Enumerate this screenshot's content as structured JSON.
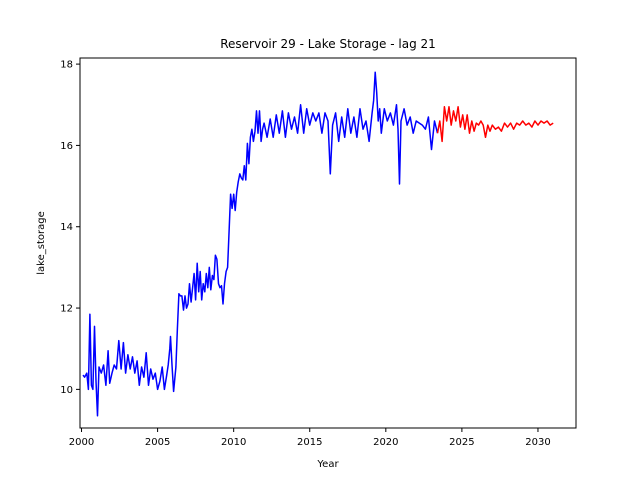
{
  "chart_data": {
    "type": "line",
    "title": "Reservoir 29 - Lake Storage - lag 21",
    "xlabel": "Year",
    "ylabel": "lake_storage",
    "xlim": [
      1999.9,
      2032.5
    ],
    "ylim": [
      9.05,
      18.15
    ],
    "xticks": [
      2000,
      2005,
      2010,
      2015,
      2020,
      2025,
      2030
    ],
    "yticks": [
      10,
      12,
      14,
      16,
      18
    ],
    "grid": false,
    "legend": "none",
    "series": [
      {
        "color": "#0000ff",
        "points": [
          [
            2000.1,
            10.35
          ],
          [
            2000.2,
            10.3
          ],
          [
            2000.35,
            10.4
          ],
          [
            2000.45,
            10.0
          ],
          [
            2000.55,
            11.85
          ],
          [
            2000.65,
            10.1
          ],
          [
            2000.75,
            10.0
          ],
          [
            2000.85,
            11.55
          ],
          [
            2000.95,
            10.2
          ],
          [
            2001.05,
            9.35
          ],
          [
            2001.15,
            10.55
          ],
          [
            2001.3,
            10.4
          ],
          [
            2001.45,
            10.6
          ],
          [
            2001.6,
            10.1
          ],
          [
            2001.75,
            10.95
          ],
          [
            2001.85,
            10.15
          ],
          [
            2002.0,
            10.4
          ],
          [
            2002.15,
            10.6
          ],
          [
            2002.3,
            10.5
          ],
          [
            2002.45,
            11.2
          ],
          [
            2002.6,
            10.5
          ],
          [
            2002.75,
            11.15
          ],
          [
            2002.9,
            10.4
          ],
          [
            2003.05,
            10.85
          ],
          [
            2003.2,
            10.5
          ],
          [
            2003.35,
            10.8
          ],
          [
            2003.5,
            10.4
          ],
          [
            2003.65,
            10.7
          ],
          [
            2003.8,
            10.1
          ],
          [
            2003.95,
            10.55
          ],
          [
            2004.1,
            10.3
          ],
          [
            2004.25,
            10.9
          ],
          [
            2004.4,
            10.1
          ],
          [
            2004.55,
            10.5
          ],
          [
            2004.7,
            10.25
          ],
          [
            2004.85,
            10.4
          ],
          [
            2005.0,
            10.0
          ],
          [
            2005.15,
            10.2
          ],
          [
            2005.3,
            10.55
          ],
          [
            2005.45,
            10.0
          ],
          [
            2005.6,
            10.35
          ],
          [
            2005.7,
            10.6
          ],
          [
            2005.8,
            11.0
          ],
          [
            2005.85,
            11.3
          ],
          [
            2005.95,
            10.6
          ],
          [
            2006.05,
            9.95
          ],
          [
            2006.2,
            10.55
          ],
          [
            2006.3,
            11.5
          ],
          [
            2006.4,
            12.35
          ],
          [
            2006.5,
            12.3
          ],
          [
            2006.6,
            12.3
          ],
          [
            2006.7,
            11.95
          ],
          [
            2006.8,
            12.3
          ],
          [
            2006.9,
            12.0
          ],
          [
            2007.0,
            12.1
          ],
          [
            2007.1,
            12.6
          ],
          [
            2007.2,
            12.15
          ],
          [
            2007.3,
            12.5
          ],
          [
            2007.4,
            12.85
          ],
          [
            2007.5,
            12.2
          ],
          [
            2007.6,
            13.1
          ],
          [
            2007.7,
            12.4
          ],
          [
            2007.8,
            12.9
          ],
          [
            2007.9,
            12.2
          ],
          [
            2008.0,
            12.6
          ],
          [
            2008.1,
            12.4
          ],
          [
            2008.2,
            12.85
          ],
          [
            2008.3,
            12.5
          ],
          [
            2008.4,
            13.0
          ],
          [
            2008.5,
            12.45
          ],
          [
            2008.6,
            12.8
          ],
          [
            2008.7,
            12.7
          ],
          [
            2008.8,
            13.3
          ],
          [
            2008.9,
            13.2
          ],
          [
            2009.0,
            12.6
          ],
          [
            2009.1,
            12.5
          ],
          [
            2009.2,
            12.55
          ],
          [
            2009.3,
            12.1
          ],
          [
            2009.4,
            12.6
          ],
          [
            2009.5,
            12.9
          ],
          [
            2009.6,
            13.0
          ],
          [
            2009.7,
            13.9
          ],
          [
            2009.8,
            14.8
          ],
          [
            2009.9,
            14.45
          ],
          [
            2010.0,
            14.8
          ],
          [
            2010.1,
            14.4
          ],
          [
            2010.2,
            14.85
          ],
          [
            2010.3,
            15.1
          ],
          [
            2010.4,
            15.3
          ],
          [
            2010.5,
            15.2
          ],
          [
            2010.6,
            15.15
          ],
          [
            2010.7,
            15.5
          ],
          [
            2010.8,
            15.15
          ],
          [
            2010.9,
            16.05
          ],
          [
            2011.0,
            15.55
          ],
          [
            2011.1,
            16.2
          ],
          [
            2011.2,
            16.4
          ],
          [
            2011.3,
            16.1
          ],
          [
            2011.4,
            16.35
          ],
          [
            2011.5,
            16.85
          ],
          [
            2011.6,
            16.3
          ],
          [
            2011.7,
            16.85
          ],
          [
            2011.8,
            16.1
          ],
          [
            2011.9,
            16.4
          ],
          [
            2012.0,
            16.55
          ],
          [
            2012.2,
            16.2
          ],
          [
            2012.4,
            16.65
          ],
          [
            2012.6,
            16.2
          ],
          [
            2012.8,
            16.75
          ],
          [
            2013.0,
            16.3
          ],
          [
            2013.2,
            16.85
          ],
          [
            2013.4,
            16.2
          ],
          [
            2013.6,
            16.8
          ],
          [
            2013.8,
            16.4
          ],
          [
            2014.0,
            16.7
          ],
          [
            2014.2,
            16.3
          ],
          [
            2014.4,
            17.0
          ],
          [
            2014.6,
            16.3
          ],
          [
            2014.8,
            16.9
          ],
          [
            2015.0,
            16.5
          ],
          [
            2015.2,
            16.8
          ],
          [
            2015.4,
            16.6
          ],
          [
            2015.6,
            16.8
          ],
          [
            2015.8,
            16.3
          ],
          [
            2016.0,
            16.8
          ],
          [
            2016.2,
            16.6
          ],
          [
            2016.35,
            15.3
          ],
          [
            2016.5,
            16.5
          ],
          [
            2016.7,
            16.8
          ],
          [
            2016.9,
            16.1
          ],
          [
            2017.1,
            16.7
          ],
          [
            2017.3,
            16.2
          ],
          [
            2017.5,
            16.9
          ],
          [
            2017.7,
            16.3
          ],
          [
            2017.9,
            16.7
          ],
          [
            2018.1,
            16.2
          ],
          [
            2018.3,
            16.9
          ],
          [
            2018.5,
            16.4
          ],
          [
            2018.7,
            16.6
          ],
          [
            2018.9,
            16.1
          ],
          [
            2019.1,
            16.8
          ],
          [
            2019.2,
            17.1
          ],
          [
            2019.3,
            17.8
          ],
          [
            2019.4,
            17.3
          ],
          [
            2019.5,
            16.6
          ],
          [
            2019.6,
            16.9
          ],
          [
            2019.7,
            16.3
          ],
          [
            2019.9,
            16.9
          ],
          [
            2020.1,
            16.6
          ],
          [
            2020.3,
            16.8
          ],
          [
            2020.5,
            16.5
          ],
          [
            2020.7,
            17.0
          ],
          [
            2020.8,
            16.4
          ],
          [
            2020.9,
            15.05
          ],
          [
            2021.0,
            16.6
          ],
          [
            2021.2,
            16.9
          ],
          [
            2021.4,
            16.5
          ],
          [
            2021.6,
            16.7
          ],
          [
            2021.8,
            16.3
          ],
          [
            2022.0,
            16.6
          ],
          [
            2022.2,
            16.55
          ],
          [
            2022.4,
            16.5
          ],
          [
            2022.6,
            16.4
          ],
          [
            2022.8,
            16.7
          ],
          [
            2023.0,
            15.9
          ],
          [
            2023.2,
            16.6
          ],
          [
            2023.4,
            16.3
          ]
        ]
      },
      {
        "color": "#ff0000",
        "points": [
          [
            2023.4,
            16.3
          ],
          [
            2023.55,
            16.6
          ],
          [
            2023.7,
            16.1
          ],
          [
            2023.85,
            16.95
          ],
          [
            2024.0,
            16.6
          ],
          [
            2024.15,
            16.95
          ],
          [
            2024.3,
            16.5
          ],
          [
            2024.45,
            16.85
          ],
          [
            2024.6,
            16.6
          ],
          [
            2024.75,
            16.95
          ],
          [
            2024.9,
            16.45
          ],
          [
            2025.05,
            16.75
          ],
          [
            2025.2,
            16.4
          ],
          [
            2025.35,
            16.75
          ],
          [
            2025.5,
            16.3
          ],
          [
            2025.65,
            16.6
          ],
          [
            2025.8,
            16.35
          ],
          [
            2025.95,
            16.55
          ],
          [
            2026.1,
            16.5
          ],
          [
            2026.25,
            16.6
          ],
          [
            2026.4,
            16.5
          ],
          [
            2026.55,
            16.2
          ],
          [
            2026.7,
            16.5
          ],
          [
            2026.85,
            16.35
          ],
          [
            2027.0,
            16.5
          ],
          [
            2027.2,
            16.4
          ],
          [
            2027.4,
            16.45
          ],
          [
            2027.6,
            16.35
          ],
          [
            2027.8,
            16.55
          ],
          [
            2028.0,
            16.45
          ],
          [
            2028.2,
            16.55
          ],
          [
            2028.4,
            16.4
          ],
          [
            2028.6,
            16.55
          ],
          [
            2028.8,
            16.5
          ],
          [
            2029.0,
            16.6
          ],
          [
            2029.2,
            16.5
          ],
          [
            2029.4,
            16.55
          ],
          [
            2029.6,
            16.45
          ],
          [
            2029.8,
            16.6
          ],
          [
            2030.0,
            16.5
          ],
          [
            2030.2,
            16.6
          ],
          [
            2030.4,
            16.55
          ],
          [
            2030.6,
            16.6
          ],
          [
            2030.8,
            16.5
          ],
          [
            2031.0,
            16.55
          ]
        ]
      }
    ]
  }
}
